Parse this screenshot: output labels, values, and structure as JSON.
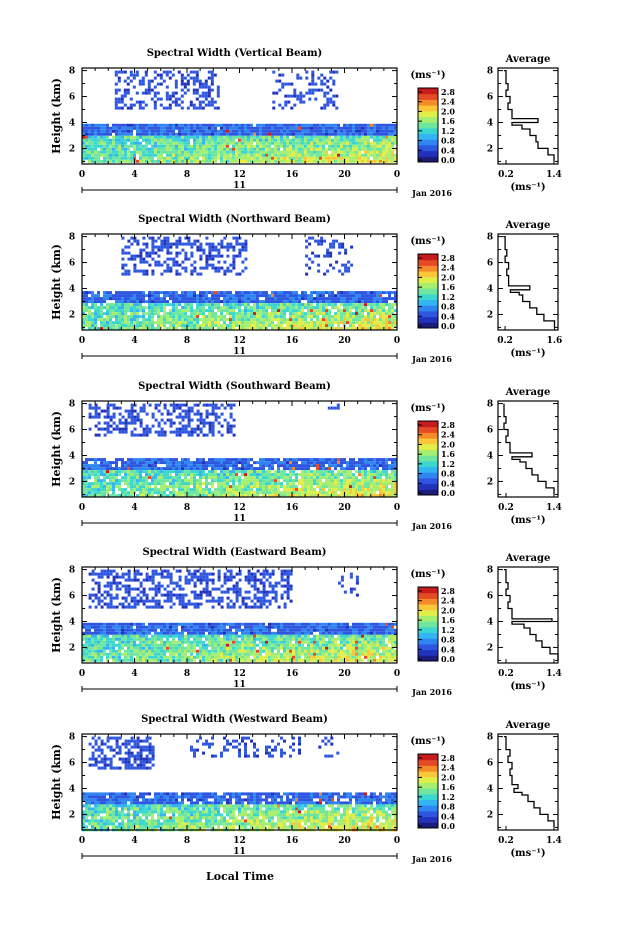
{
  "figure": {
    "xlabel": "Local Time",
    "date_label": "Jan 2016",
    "day_label": "11",
    "colorbar_unit": "(ms⁻¹)",
    "colorbar_ticks": [
      "0.0",
      "0.4",
      "0.8",
      "1.2",
      "1.6",
      "2.0",
      "2.4",
      "2.8"
    ],
    "colorbar_colors": [
      "#1c1c7a",
      "#2233bb",
      "#2f56e0",
      "#2f86f0",
      "#34b4f0",
      "#3cd6d0",
      "#6ee6a0",
      "#a6ee70",
      "#e0ee4a",
      "#f8c838",
      "#f48a2a",
      "#e44a24",
      "#c61c1c"
    ]
  },
  "chart_data": [
    {
      "type": "heatmap",
      "title": "Spectral Width (Vertical Beam)",
      "ylabel": "Height (km)",
      "x_ticks": [
        "0",
        "4",
        "8",
        "12",
        "16",
        "20",
        "0"
      ],
      "y_ticks": [
        "2",
        "4",
        "6",
        "8"
      ],
      "xlim": [
        0,
        24
      ],
      "ylim": [
        0.8,
        8.2
      ],
      "bands": [
        {
          "y0": 0.9,
          "y1": 3.9,
          "x0": 0,
          "x1": 24,
          "density": 0.97,
          "base": 0.4,
          "hot": true
        },
        {
          "y0": 5.0,
          "y1": 8.0,
          "x0": 2.5,
          "x1": 10.5,
          "density": 0.45,
          "base": 0.15,
          "hot": false
        },
        {
          "y0": 5.0,
          "y1": 8.0,
          "x0": 14.5,
          "x1": 19.5,
          "density": 0.3,
          "base": 0.15,
          "hot": false
        }
      ],
      "average": {
        "title": "Average",
        "xlabel": "(ms⁻¹)",
        "x_ticks": [
          "0.2",
          "1.4"
        ],
        "xlim": [
          0.0,
          1.5
        ],
        "y_ticks": [
          "2",
          "4",
          "6",
          "8"
        ],
        "height": [
          1.0,
          1.5,
          2.0,
          2.5,
          3.0,
          3.5,
          3.8,
          4.0,
          4.3,
          5.0,
          5.5,
          6.0,
          6.5,
          7.0,
          8.0
        ],
        "width": [
          1.4,
          1.25,
          1.0,
          0.95,
          0.8,
          0.6,
          0.35,
          1.0,
          0.35,
          0.25,
          0.3,
          0.2,
          0.25,
          0.2,
          0.15
        ]
      }
    },
    {
      "type": "heatmap",
      "title": "Spectral Width (Northward Beam)",
      "ylabel": "Height (km)",
      "x_ticks": [
        "0",
        "4",
        "8",
        "12",
        "16",
        "20",
        "0"
      ],
      "y_ticks": [
        "2",
        "4",
        "6",
        "8"
      ],
      "xlim": [
        0,
        24
      ],
      "ylim": [
        0.8,
        8.2
      ],
      "bands": [
        {
          "y0": 0.9,
          "y1": 3.8,
          "x0": 0,
          "x1": 24,
          "density": 0.92,
          "base": 0.4,
          "hot": true
        },
        {
          "y0": 5.0,
          "y1": 8.0,
          "x0": 3.0,
          "x1": 12.5,
          "density": 0.45,
          "base": 0.15,
          "hot": false
        },
        {
          "y0": 5.0,
          "y1": 8.0,
          "x0": 17.0,
          "x1": 20.5,
          "density": 0.25,
          "base": 0.15,
          "hot": false
        }
      ],
      "average": {
        "title": "Average",
        "xlabel": "(ms⁻¹)",
        "x_ticks": [
          "0.2",
          "1.6"
        ],
        "xlim": [
          0.0,
          1.7
        ],
        "y_ticks": [
          "2",
          "4",
          "6",
          "8"
        ],
        "height": [
          1.0,
          1.5,
          2.0,
          2.5,
          3.0,
          3.5,
          3.7,
          3.9,
          4.2,
          5.0,
          5.5,
          6.0,
          6.5,
          7.0,
          8.0
        ],
        "width": [
          1.6,
          1.3,
          1.1,
          0.9,
          0.7,
          0.6,
          0.35,
          0.9,
          0.3,
          0.25,
          0.3,
          0.2,
          0.25,
          0.2,
          0.15
        ]
      }
    },
    {
      "type": "heatmap",
      "title": "Spectral Width (Southward Beam)",
      "ylabel": "Height (km)",
      "x_ticks": [
        "0",
        "4",
        "8",
        "12",
        "16",
        "20",
        "0"
      ],
      "y_ticks": [
        "2",
        "4",
        "6",
        "8"
      ],
      "xlim": [
        0,
        24
      ],
      "ylim": [
        0.8,
        8.2
      ],
      "bands": [
        {
          "y0": 0.9,
          "y1": 3.8,
          "x0": 0,
          "x1": 24,
          "density": 0.9,
          "base": 0.4,
          "hot": true
        },
        {
          "y0": 5.5,
          "y1": 8.0,
          "x0": 0.5,
          "x1": 11.5,
          "density": 0.45,
          "base": 0.15,
          "hot": false
        },
        {
          "y0": 7.6,
          "y1": 8.0,
          "x0": 18.5,
          "x1": 20.5,
          "density": 0.2,
          "base": 0.15,
          "hot": false
        }
      ],
      "average": {
        "title": "Average",
        "xlabel": "(ms⁻¹)",
        "x_ticks": [
          "0.2",
          "1.4"
        ],
        "xlim": [
          0.0,
          1.5
        ],
        "y_ticks": [
          "2",
          "4",
          "6",
          "8"
        ],
        "height": [
          1.0,
          1.5,
          2.0,
          2.5,
          3.0,
          3.5,
          3.7,
          3.9,
          4.2,
          5.0,
          5.5,
          6.0,
          6.5,
          7.0,
          8.0
        ],
        "width": [
          1.4,
          1.2,
          1.0,
          0.85,
          0.7,
          0.55,
          0.35,
          0.85,
          0.3,
          0.2,
          0.25,
          0.15,
          0.2,
          0.15,
          0.15
        ]
      }
    },
    {
      "type": "heatmap",
      "title": "Spectral Width (Eastward Beam)",
      "ylabel": "Height (km)",
      "x_ticks": [
        "0",
        "4",
        "8",
        "12",
        "16",
        "20",
        "0"
      ],
      "y_ticks": [
        "2",
        "4",
        "6",
        "8"
      ],
      "xlim": [
        0,
        24
      ],
      "ylim": [
        0.8,
        8.2
      ],
      "bands": [
        {
          "y0": 0.9,
          "y1": 3.9,
          "x0": 0,
          "x1": 24,
          "density": 0.95,
          "base": 0.4,
          "hot": true
        },
        {
          "y0": 5.0,
          "y1": 8.0,
          "x0": 0.5,
          "x1": 16.0,
          "density": 0.5,
          "base": 0.15,
          "hot": false
        },
        {
          "y0": 6.0,
          "y1": 8.0,
          "x0": 19.5,
          "x1": 21.0,
          "density": 0.2,
          "base": 0.15,
          "hot": false
        }
      ],
      "average": {
        "title": "Average",
        "xlabel": "(ms⁻¹)",
        "x_ticks": [
          "0.2",
          "1.4"
        ],
        "xlim": [
          0.0,
          1.5
        ],
        "y_ticks": [
          "2",
          "4",
          "6",
          "8"
        ],
        "height": [
          1.0,
          1.5,
          2.0,
          2.5,
          3.0,
          3.5,
          3.8,
          4.0,
          4.2,
          5.0,
          5.5,
          6.0,
          6.5,
          7.0,
          8.0
        ],
        "width": [
          1.5,
          1.3,
          1.1,
          0.95,
          0.8,
          0.65,
          0.35,
          1.35,
          0.35,
          0.25,
          0.3,
          0.2,
          0.25,
          0.2,
          0.15
        ]
      }
    },
    {
      "type": "heatmap",
      "title": "Spectral Width (Westward Beam)",
      "ylabel": "Height (km)",
      "x_ticks": [
        "0",
        "4",
        "8",
        "12",
        "16",
        "20",
        "0"
      ],
      "y_ticks": [
        "2",
        "4",
        "6",
        "8"
      ],
      "xlim": [
        0,
        24
      ],
      "ylim": [
        0.8,
        8.2
      ],
      "bands": [
        {
          "y0": 0.9,
          "y1": 3.7,
          "x0": 0,
          "x1": 24,
          "density": 0.88,
          "base": 0.4,
          "hot": true
        },
        {
          "y0": 5.5,
          "y1": 8.0,
          "x0": 0.5,
          "x1": 5.5,
          "density": 0.6,
          "base": 0.15,
          "hot": false
        },
        {
          "y0": 6.5,
          "y1": 8.0,
          "x0": 8.0,
          "x1": 16.5,
          "density": 0.25,
          "base": 0.15,
          "hot": false
        },
        {
          "y0": 6.5,
          "y1": 8.0,
          "x0": 18.0,
          "x1": 19.5,
          "density": 0.2,
          "base": 0.15,
          "hot": false
        }
      ],
      "average": {
        "title": "Average",
        "xlabel": "(ms⁻¹)",
        "x_ticks": [
          "0.2",
          "1.4"
        ],
        "xlim": [
          0.0,
          1.5
        ],
        "y_ticks": [
          "2",
          "4",
          "6",
          "8"
        ],
        "height": [
          1.0,
          1.5,
          2.0,
          2.5,
          3.0,
          3.5,
          3.7,
          4.0,
          4.3,
          5.0,
          5.5,
          6.0,
          6.5,
          7.0,
          8.0
        ],
        "width": [
          1.4,
          1.25,
          1.05,
          0.9,
          0.75,
          0.6,
          0.4,
          0.5,
          0.35,
          0.3,
          0.35,
          0.25,
          0.3,
          0.2,
          0.15
        ]
      }
    }
  ]
}
